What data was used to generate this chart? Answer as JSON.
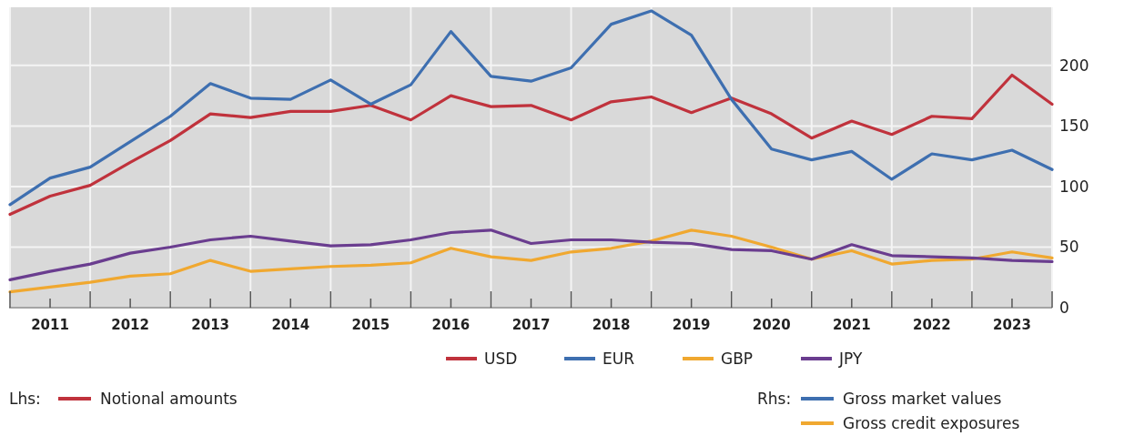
{
  "chart_data": {
    "type": "line",
    "x": [
      2011,
      2011.5,
      2012,
      2012.5,
      2013,
      2013.5,
      2014,
      2014.5,
      2015,
      2015.5,
      2016,
      2016.5,
      2017,
      2017.5,
      2018,
      2018.5,
      2019,
      2019.5,
      2020,
      2020.5,
      2021,
      2021.5,
      2022,
      2022.5,
      2023,
      2023.5,
      2024
    ],
    "series": [
      {
        "name": "USD",
        "color": "#c0323c",
        "values": [
          77,
          92,
          101,
          120,
          138,
          160,
          157,
          162,
          162,
          167,
          155,
          175,
          166,
          167,
          155,
          170,
          174,
          161,
          173,
          160,
          140,
          154,
          143,
          158,
          156,
          192,
          168
        ]
      },
      {
        "name": "EUR",
        "color": "#3e6fb0",
        "values": [
          85,
          107,
          116,
          137,
          158,
          185,
          173,
          172,
          188,
          168,
          184,
          228,
          191,
          187,
          198,
          234,
          245,
          225,
          172,
          131,
          122,
          129,
          106,
          127,
          122,
          130,
          114
        ]
      },
      {
        "name": "GBP",
        "color": "#f0a830",
        "values": [
          13,
          17,
          21,
          26,
          28,
          39,
          30,
          32,
          34,
          35,
          37,
          49,
          42,
          39,
          46,
          49,
          55,
          64,
          59,
          50,
          40,
          47,
          36,
          39,
          40,
          46,
          41
        ]
      },
      {
        "name": "JPY",
        "color": "#6a3d8f",
        "values": [
          23,
          30,
          36,
          45,
          50,
          56,
          59,
          55,
          51,
          52,
          56,
          62,
          64,
          53,
          56,
          56,
          54,
          53,
          48,
          47,
          40,
          52,
          43,
          42,
          41,
          39,
          38
        ]
      }
    ],
    "xlim": [
      2011,
      2024
    ],
    "xticks": [
      {
        "value": 2011,
        "label": null
      },
      {
        "value": 2011.5,
        "label": "2011"
      },
      {
        "value": 2012,
        "label": null
      },
      {
        "value": 2012.5,
        "label": "2012"
      },
      {
        "value": 2013,
        "label": null
      },
      {
        "value": 2013.5,
        "label": "2013"
      },
      {
        "value": 2014,
        "label": null
      },
      {
        "value": 2014.5,
        "label": "2014"
      },
      {
        "value": 2015,
        "label": null
      },
      {
        "value": 2015.5,
        "label": "2015"
      },
      {
        "value": 2016,
        "label": null
      },
      {
        "value": 2016.5,
        "label": "2016"
      },
      {
        "value": 2017,
        "label": null
      },
      {
        "value": 2017.5,
        "label": "2017"
      },
      {
        "value": 2018,
        "label": null
      },
      {
        "value": 2018.5,
        "label": "2018"
      },
      {
        "value": 2019,
        "label": null
      },
      {
        "value": 2019.5,
        "label": "2019"
      },
      {
        "value": 2020,
        "label": null
      },
      {
        "value": 2020.5,
        "label": "2020"
      },
      {
        "value": 2021,
        "label": null
      },
      {
        "value": 2021.5,
        "label": "2021"
      },
      {
        "value": 2022,
        "label": null
      },
      {
        "value": 2022.5,
        "label": "2022"
      },
      {
        "value": 2023,
        "label": null
      },
      {
        "value": 2023.5,
        "label": "2023"
      },
      {
        "value": 2024,
        "label": null
      }
    ],
    "ylim": [
      0,
      248
    ],
    "yticks": [
      0,
      50,
      100,
      150,
      200
    ],
    "grid": true,
    "legend": "bottom",
    "annotations": [
      "Lhs:",
      "Notional amounts",
      "Rhs:",
      "Gross market values",
      "Gross credit exposures"
    ]
  }
}
